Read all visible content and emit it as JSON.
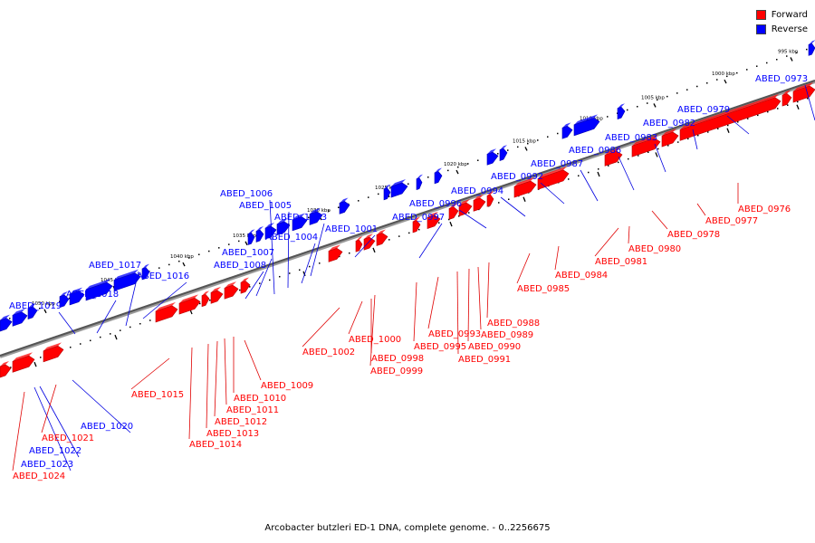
{
  "caption": "Arcobacter butzleri ED-1 DNA, complete genome. - 0..2256675",
  "legend": [
    {
      "label": "Forward",
      "color": "#ff0000"
    },
    {
      "label": "Reverse",
      "color": "#0000ff"
    }
  ],
  "colors": {
    "forward": "#ff0000",
    "forward_dark": "#b40000",
    "reverse": "#0000ff",
    "reverse_dark": "#0000b0",
    "forward_leader": "#e00000",
    "reverse_leader": "#0000e0",
    "backbone": "#555555"
  },
  "scale_labels": [
    "995 kbp",
    "1000 kbp",
    "1005 kbp",
    "1010 kbp",
    "1015 kbp",
    "1020 kbp",
    "1025 kbp",
    "1030 kbp",
    "1035 kbp",
    "1040 kbp",
    "1045 kbp",
    "1050 kbp"
  ],
  "reverse_genes": [
    "ABED_0973",
    "ABED_0979",
    "ABED_0982",
    "ABED_0983",
    "ABED_0986",
    "ABED_0987",
    "ABED_0992",
    "ABED_0994",
    "ABED_0996",
    "ABED_0997",
    "ABED_1001",
    "ABED_1003",
    "ABED_1004",
    "ABED_1005",
    "ABED_1006",
    "ABED_1007",
    "ABED_1008",
    "ABED_1016",
    "ABED_1017",
    "ABED_1018",
    "ABED_1019",
    "ABED_1020",
    "ABED_1022",
    "ABED_1023"
  ],
  "forward_genes": [
    "ABED_0976",
    "ABED_0977",
    "ABED_0978",
    "ABED_0980",
    "ABED_0981",
    "ABED_0984",
    "ABED_0985",
    "ABED_0988",
    "ABED_0989",
    "ABED_0990",
    "ABED_0991",
    "ABED_0993",
    "ABED_0995",
    "ABED_0998",
    "ABED_0999",
    "ABED_1000",
    "ABED_1002",
    "ABED_1009",
    "ABED_1010",
    "ABED_1011",
    "ABED_1012",
    "ABED_1013",
    "ABED_1014",
    "ABED_1015",
    "ABED_1021",
    "ABED_1024"
  ]
}
